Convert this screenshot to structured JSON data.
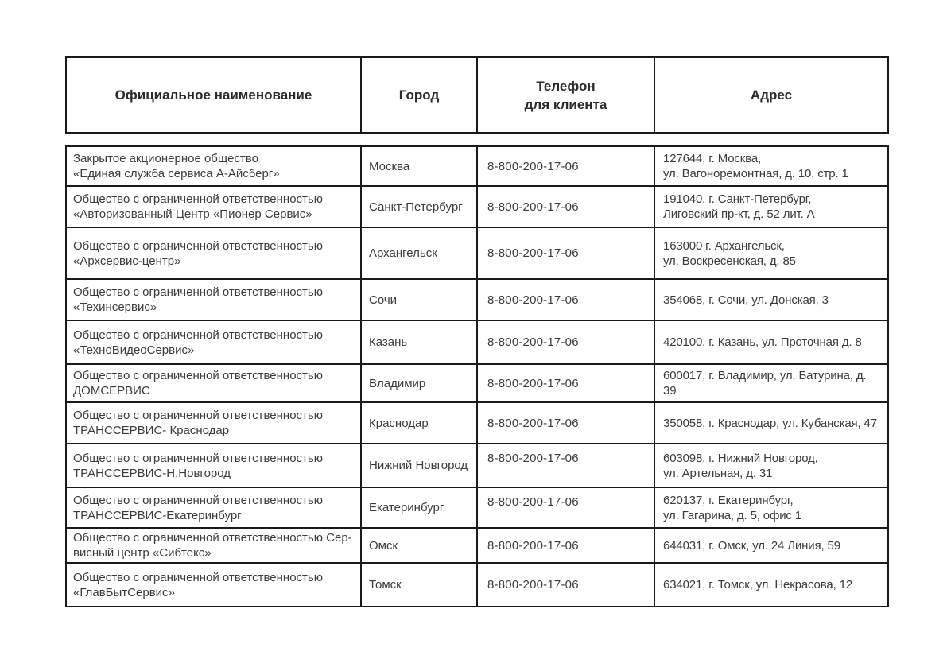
{
  "table": {
    "headers": {
      "name": "Официальное наименование",
      "city": "Город",
      "phone": "Телефон\nдля клиента",
      "address": "Адрес"
    },
    "rows": [
      {
        "name": "Закрытое акционерное общество\n«Единая служба сервиса А-Айсберг»",
        "city": "Москва",
        "phone": "8-800-200-17-06",
        "address": "127644, г. Москва,\nул. Вагоноремонтная, д. 10, стр. 1"
      },
      {
        "name": "Общество с ограниченной ответственностью\n«Авторизованный Центр «Пионер Сервис»",
        "city": "Санкт-Петербург",
        "phone": "8-800-200-17-06",
        "address": "191040, г. Санкт-Петербург,\nЛиговский пр-кт, д. 52 лит. А"
      },
      {
        "name": "Общество с ограниченной ответственностью\n«Архсервис-центр»",
        "city": "Архангельск",
        "phone": "8-800-200-17-06",
        "address": "163000 г. Архангельск,\nул. Воскресенская, д. 85"
      },
      {
        "name": "Общество с ограниченной ответственностью\n«Техинсервис»",
        "city": "Сочи",
        "phone": "8-800-200-17-06",
        "address": "354068, г. Сочи, ул. Донская, 3"
      },
      {
        "name": "Общество с ограниченной ответственностью\n«ТехноВидеоСервис»",
        "city": "Казань",
        "phone": "8-800-200-17-06",
        "address": "420100, г. Казань, ул. Проточная д. 8"
      },
      {
        "name": "Общество с ограниченной ответственностью\nДОМСЕРВИС",
        "city": "Владимир",
        "phone": "8-800-200-17-06",
        "address": "600017, г. Владимир, ул. Батурина, д. 39"
      },
      {
        "name": "Общество с ограниченной ответственностью\nТРАНССЕРВИС- Краснодар",
        "city": "Краснодар",
        "phone": "8-800-200-17-06",
        "address": "350058, г. Краснодар, ул. Кубанская, 47"
      },
      {
        "name": "Общество с ограниченной ответственностью\nТРАНССЕРВИС-Н.Новгород",
        "city": "Нижний Новгород",
        "phone": "8-800-200-17-06",
        "address": "603098, г. Нижний Новгород,\nул. Артельная, д. 31"
      },
      {
        "name": "Общество с ограниченной ответственностью\nТРАНССЕРВИС-Екатеринбург",
        "city": "Екатеринбург",
        "phone": "8-800-200-17-06",
        "address": "620137, г. Екатеринбург,\nул. Гагарина, д. 5, офис 1"
      },
      {
        "name": "Общество с ограниченной ответственностью Сер-\nвисный центр «Сибтекс»",
        "city": "Омск",
        "phone": "8-800-200-17-06",
        "address": "644031, г. Омск, ул. 24 Линия, 59"
      },
      {
        "name": "Общество с ограниченной ответственностью\n«ГлавБытСервис»",
        "city": "Томск",
        "phone": "8-800-200-17-06",
        "address": "634021, г. Томск, ул. Некрасова, 12"
      }
    ]
  }
}
